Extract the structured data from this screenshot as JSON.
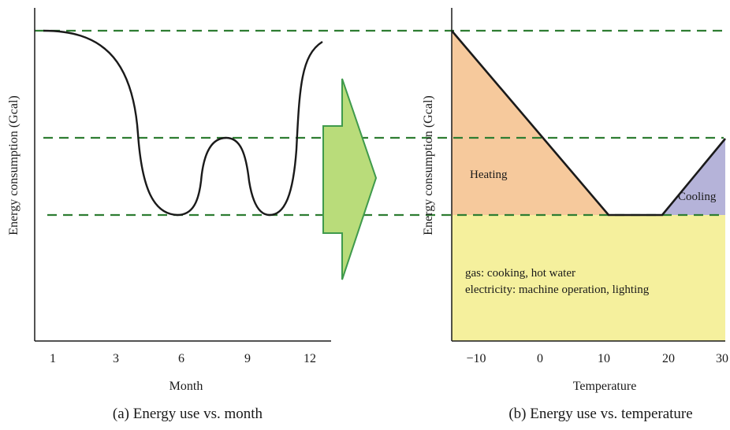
{
  "panel_a": {
    "caption": "(a) Energy use vs. month",
    "xlabel": "Month",
    "ylabel": "Energy consumption (Gcal)",
    "xticks": [
      "1",
      "3",
      "6",
      "9",
      "12"
    ]
  },
  "panel_b": {
    "caption": "(b) Energy use vs. temperature",
    "xlabel": "Temperature",
    "ylabel": "Energy consumption (Gcal)",
    "xticks": [
      "−10",
      "0",
      "10",
      "20",
      "30"
    ],
    "heating_label": "Heating",
    "cooling_label": "Cooling",
    "base_line1": "gas: cooking, hot water",
    "base_line2": "electricity: machine operation, lighting"
  },
  "colors": {
    "heating": "#f6c99c",
    "cooling": "#b5b3d9",
    "base": "#f5f09d",
    "arrow_fill": "#b9dc7a",
    "arrow_stroke": "#3f9a4c",
    "dashed": "#2e7d32",
    "curve": "#1a1a1a"
  },
  "chart_data": [
    {
      "type": "line",
      "xlabel": "Month",
      "ylabel": "Energy consumption (Gcal)",
      "x_ticks": [
        1,
        3,
        6,
        9,
        12
      ],
      "shape": "qualitative curve: high in winter (months 1 and 12), minima near months 6 and 10, local peak near month 8; three dashed reference levels (high, middle, base)"
    },
    {
      "type": "area",
      "xlabel": "Temperature",
      "ylabel": "Energy consumption (Gcal)",
      "x_ticks": [
        -10,
        0,
        10,
        20,
        30
      ],
      "regions": [
        "Heating",
        "Cooling",
        "gas: cooking, hot water / electricity: machine operation, lighting"
      ],
      "shape": "V-shaped consumption: decreases linearly with temperature to a flat base between about 11 and 19, then rises above about 19"
    }
  ]
}
